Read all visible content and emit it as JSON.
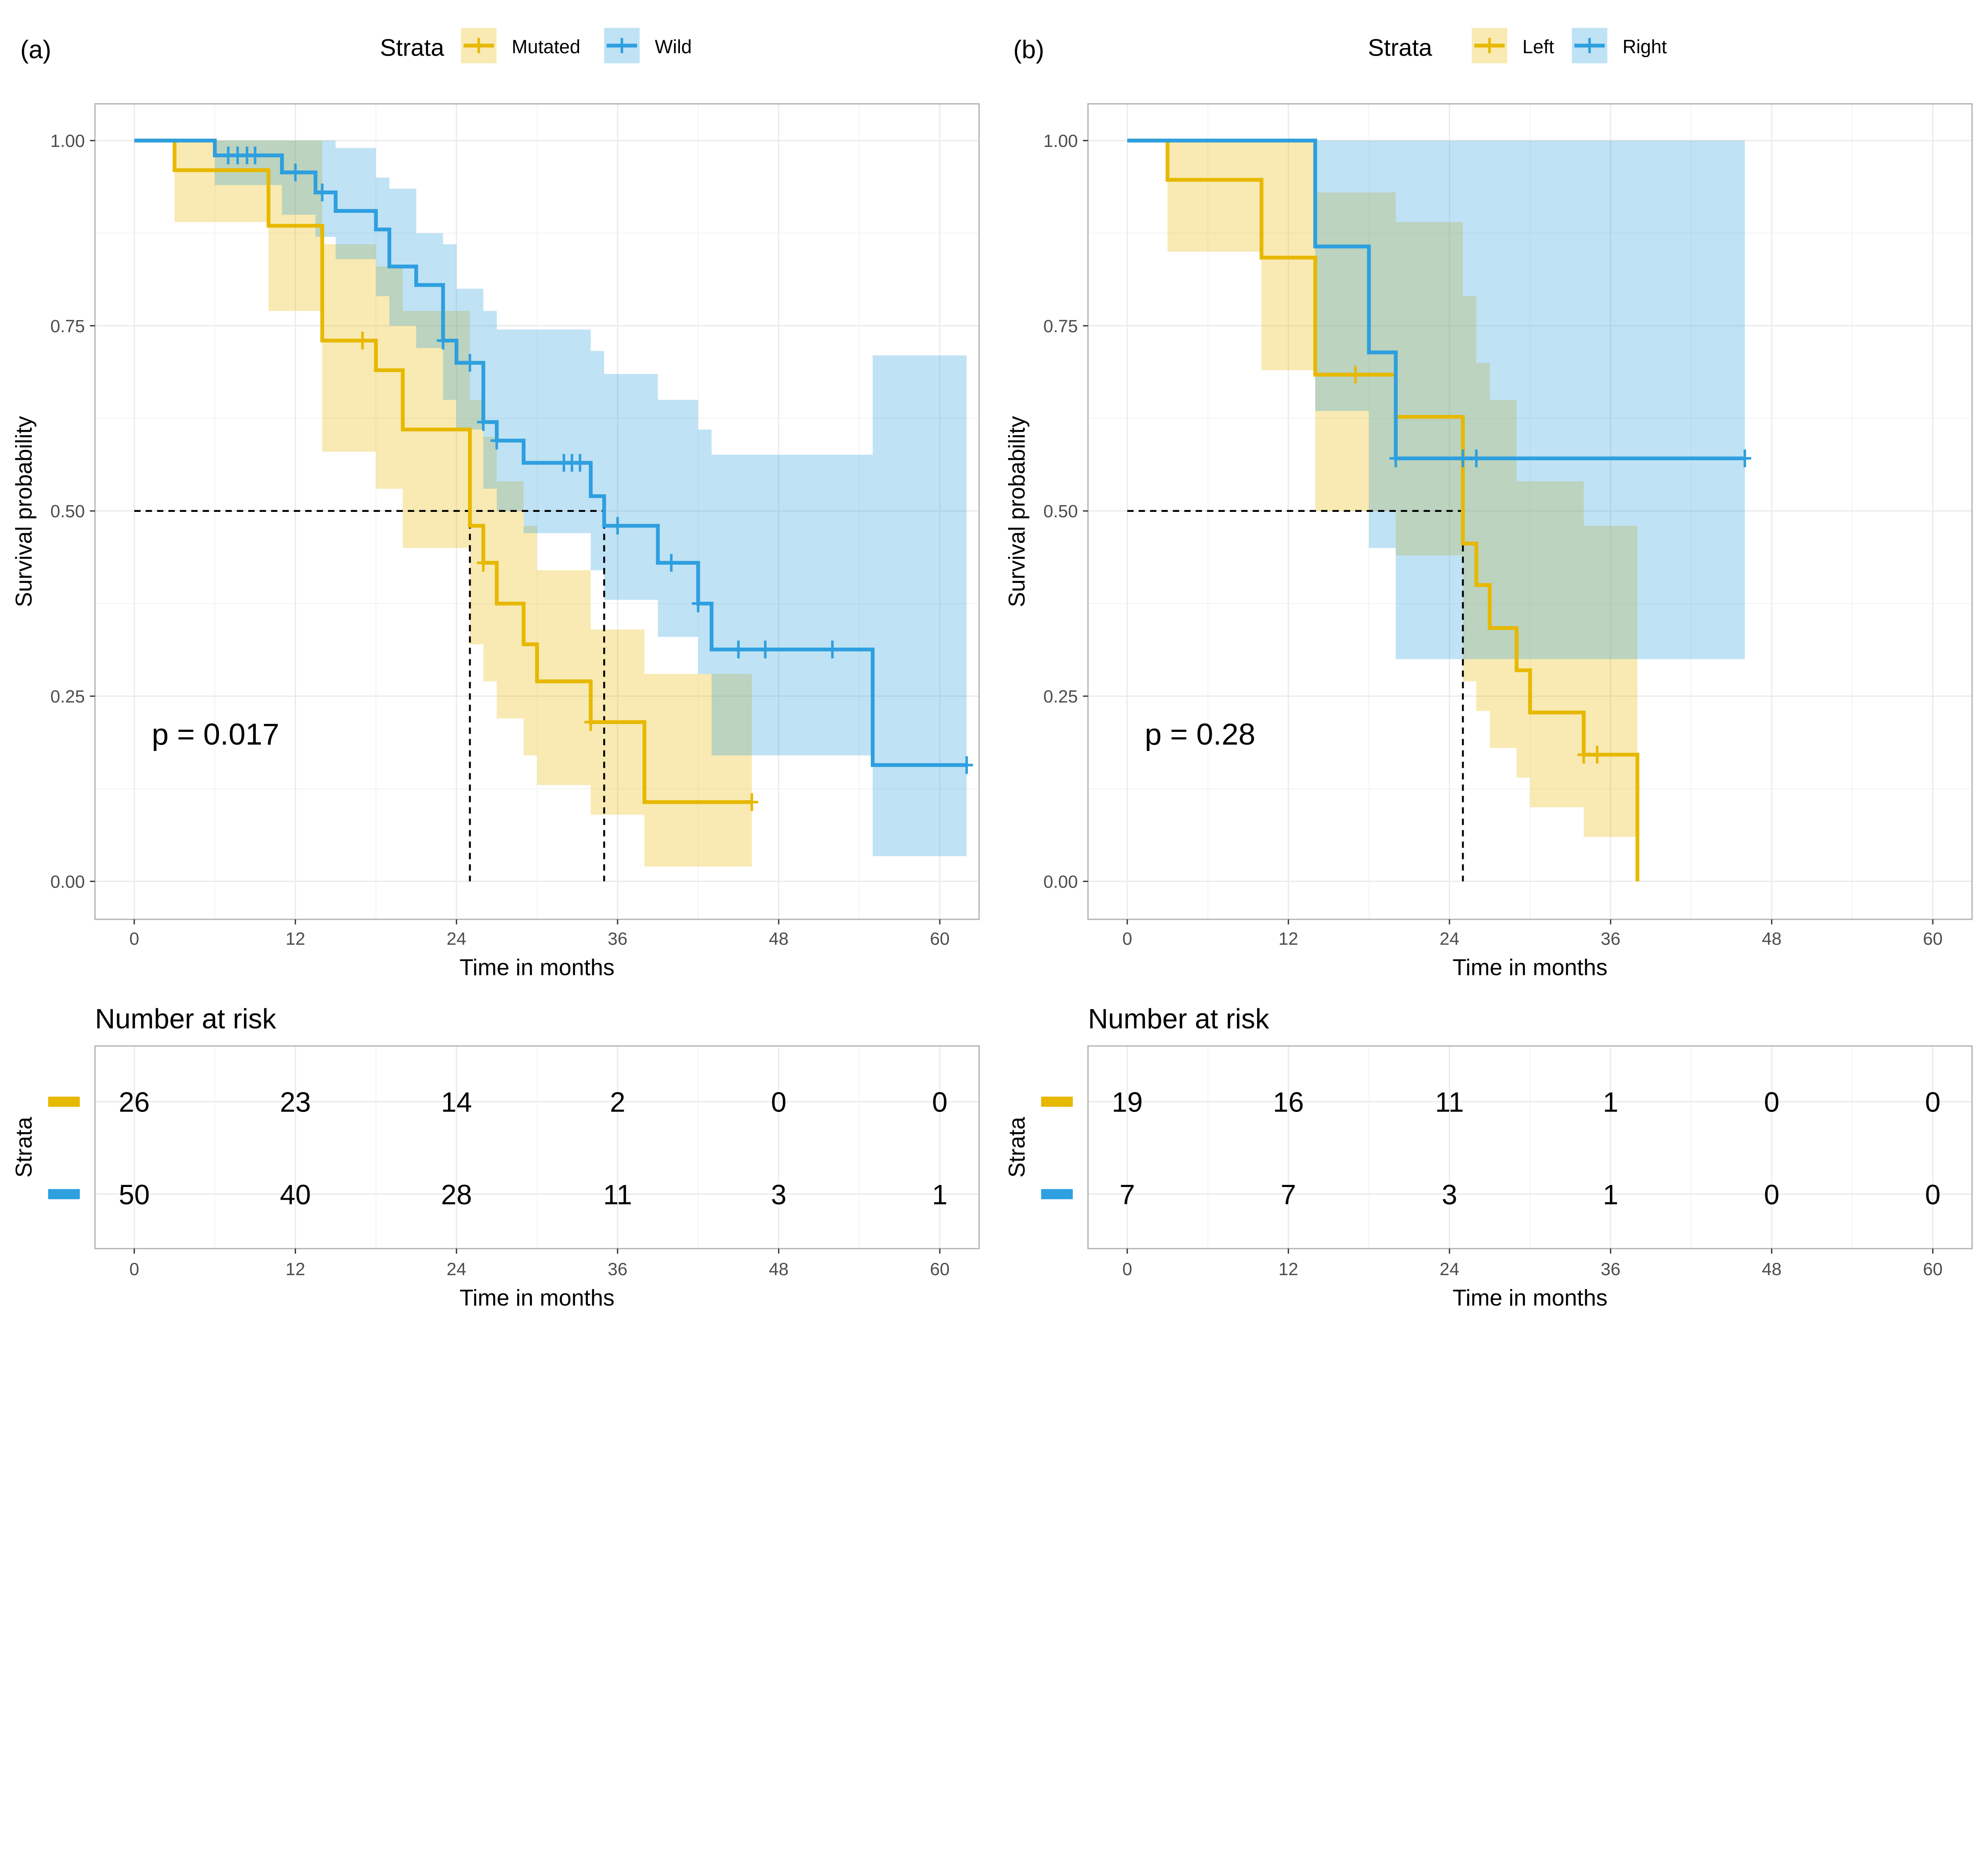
{
  "colors": {
    "yellow": "#E7B800",
    "blue": "#2E9FDF",
    "grid": "#ebebeb",
    "frame": "#b3b3b3"
  },
  "chart_data": [
    {
      "type": "line",
      "panel_label": "(a)",
      "legend": {
        "title": "Strata",
        "entries": [
          "Mutated",
          "Wild"
        ],
        "position": "top"
      },
      "xlabel": "Time in months",
      "ylabel": "Survival probability",
      "xlim": [
        0,
        63
      ],
      "ylim": [
        0,
        1
      ],
      "xticks": [
        "0",
        "12",
        "24",
        "36",
        "48",
        "60"
      ],
      "yticks": [
        "0.00",
        "0.25",
        "0.50",
        "0.75",
        "1.00"
      ],
      "grid": true,
      "pvalue": "p = 0.017",
      "median_lines": {
        "y": 0.5,
        "x": [
          25,
          35
        ]
      },
      "series": [
        {
          "name": "Mutated",
          "color": "#E7B800",
          "time": [
            0,
            3,
            10,
            14,
            18,
            20,
            25,
            26,
            27,
            29,
            30,
            34,
            38
          ],
          "surv": [
            1,
            0.96,
            0.885,
            0.73,
            0.69,
            0.61,
            0.48,
            0.43,
            0.375,
            0.32,
            0.27,
            0.215,
            0.107
          ],
          "lower": [
            1,
            0.89,
            0.77,
            0.58,
            0.53,
            0.45,
            0.32,
            0.27,
            0.22,
            0.17,
            0.13,
            0.09,
            0.02
          ],
          "upper": [
            1,
            1,
            1,
            0.86,
            0.83,
            0.77,
            0.65,
            0.6,
            0.54,
            0.48,
            0.42,
            0.34,
            0.28
          ],
          "end": 46,
          "censor": [
            17,
            26,
            34,
            46
          ]
        },
        {
          "name": "Wild",
          "color": "#2E9FDF",
          "time": [
            0,
            6,
            11,
            13.5,
            15,
            18,
            19,
            21,
            23,
            24,
            26,
            27,
            29,
            34,
            35,
            39,
            42,
            43,
            55
          ],
          "surv": [
            1,
            0.98,
            0.957,
            0.93,
            0.905,
            0.88,
            0.83,
            0.805,
            0.73,
            0.7,
            0.62,
            0.595,
            0.565,
            0.52,
            0.48,
            0.43,
            0.375,
            0.313,
            0.157
          ],
          "lower": [
            1,
            0.94,
            0.9,
            0.87,
            0.84,
            0.79,
            0.75,
            0.72,
            0.65,
            0.61,
            0.53,
            0.5,
            0.47,
            0.42,
            0.38,
            0.33,
            0.28,
            0.17,
            0.034
          ],
          "upper": [
            1,
            1,
            1,
            1,
            0.99,
            0.95,
            0.935,
            0.875,
            0.86,
            0.8,
            0.77,
            0.745,
            0.745,
            0.716,
            0.685,
            0.65,
            0.61,
            0.576,
            0.71
          ],
          "end": 62,
          "censor": [
            7,
            7.7,
            8.4,
            9,
            12,
            14,
            23,
            25,
            26,
            27,
            32,
            32.6,
            33.2,
            36,
            40,
            42,
            45,
            47,
            52,
            62
          ]
        }
      ],
      "risk_table": {
        "title": "Number at risk",
        "ylabel": "Strata",
        "xlabel": "Time in months",
        "times": [
          "0",
          "12",
          "24",
          "36",
          "48",
          "60"
        ],
        "rows": [
          [
            "26",
            "23",
            "14",
            "2",
            "0",
            "0"
          ],
          [
            "50",
            "40",
            "28",
            "11",
            "3",
            "1"
          ]
        ]
      }
    },
    {
      "type": "line",
      "panel_label": "(b)",
      "legend": {
        "title": "Strata",
        "entries": [
          "Left",
          "Right"
        ],
        "position": "top"
      },
      "xlabel": "Time in months",
      "ylabel": "Survival probability",
      "xlim": [
        0,
        63
      ],
      "ylim": [
        0,
        1
      ],
      "xticks": [
        "0",
        "12",
        "24",
        "36",
        "48",
        "60"
      ],
      "yticks": [
        "0.00",
        "0.25",
        "0.50",
        "0.75",
        "1.00"
      ],
      "grid": true,
      "pvalue": "p = 0.28",
      "median_lines": {
        "y": 0.5,
        "x": [
          25
        ]
      },
      "series": [
        {
          "name": "Left",
          "color": "#E7B800",
          "time": [
            0,
            3,
            10,
            14,
            20,
            25,
            26,
            27,
            29,
            30,
            34,
            38
          ],
          "surv": [
            1,
            0.947,
            0.842,
            0.684,
            0.627,
            0.456,
            0.4,
            0.342,
            0.285,
            0.228,
            0.171,
            0
          ],
          "lower": [
            1,
            0.85,
            0.69,
            0.5,
            0.44,
            0.27,
            0.23,
            0.18,
            0.14,
            0.1,
            0.06,
            0
          ],
          "upper": [
            1,
            1,
            1,
            0.93,
            0.89,
            0.79,
            0.7,
            0.65,
            0.54,
            0.54,
            0.48,
            0
          ],
          "end": 38,
          "censor": [
            17,
            34,
            35
          ]
        },
        {
          "name": "Right",
          "color": "#2E9FDF",
          "time": [
            0,
            14,
            18,
            20
          ],
          "surv": [
            1,
            0.857,
            0.714,
            0.571
          ],
          "lower": [
            1,
            0.635,
            0.45,
            0.3
          ],
          "upper": [
            1,
            1,
            1,
            1
          ],
          "end": 46,
          "censor": [
            20,
            25,
            26,
            46
          ]
        }
      ],
      "risk_table": {
        "title": "Number at risk",
        "ylabel": "Strata",
        "xlabel": "Time in months",
        "times": [
          "0",
          "12",
          "24",
          "36",
          "48",
          "60"
        ],
        "rows": [
          [
            "19",
            "16",
            "11",
            "1",
            "0",
            "0"
          ],
          [
            "7",
            "7",
            "3",
            "1",
            "0",
            "0"
          ]
        ]
      }
    }
  ]
}
